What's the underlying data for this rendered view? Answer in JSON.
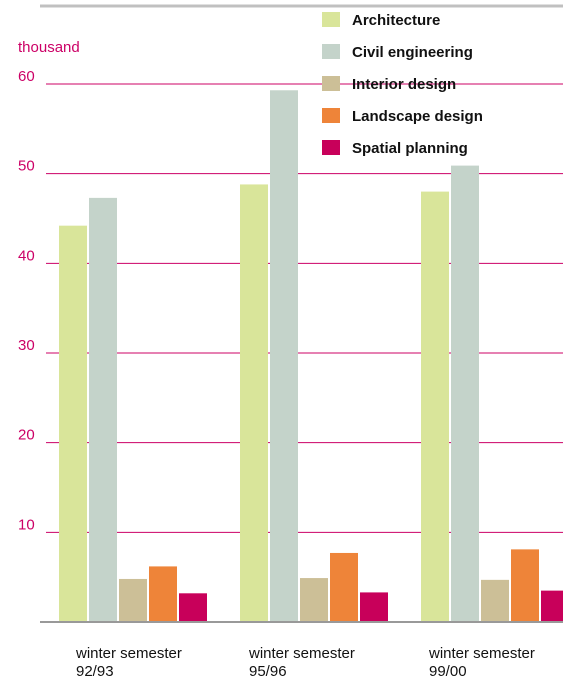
{
  "chart_data": {
    "type": "bar",
    "unit_label": "thousand",
    "categories": [
      [
        "winter semester",
        "92/93"
      ],
      [
        "winter semester",
        "95/96"
      ],
      [
        "winter semester",
        "99/00"
      ]
    ],
    "series": [
      {
        "name": "Architecture",
        "color": "#d9e59a",
        "values": [
          44.2,
          48.8,
          48.0
        ]
      },
      {
        "name": "Civil engineering",
        "color": "#c4d3ca",
        "values": [
          47.3,
          59.3,
          50.9
        ]
      },
      {
        "name": "Interior design",
        "color": "#ccbf97",
        "values": [
          4.8,
          4.9,
          4.7
        ]
      },
      {
        "name": "Landscape design",
        "color": "#ee8439",
        "values": [
          6.2,
          7.7,
          8.1
        ]
      },
      {
        "name": "Spatial planning",
        "color": "#c8005a",
        "values": [
          3.2,
          3.3,
          3.5
        ]
      }
    ],
    "ylim": [
      0,
      60
    ],
    "yticks": [
      10,
      20,
      30,
      40,
      50,
      60
    ],
    "grid": true,
    "legend": "top-right",
    "gridline_color": "#cc0066"
  }
}
